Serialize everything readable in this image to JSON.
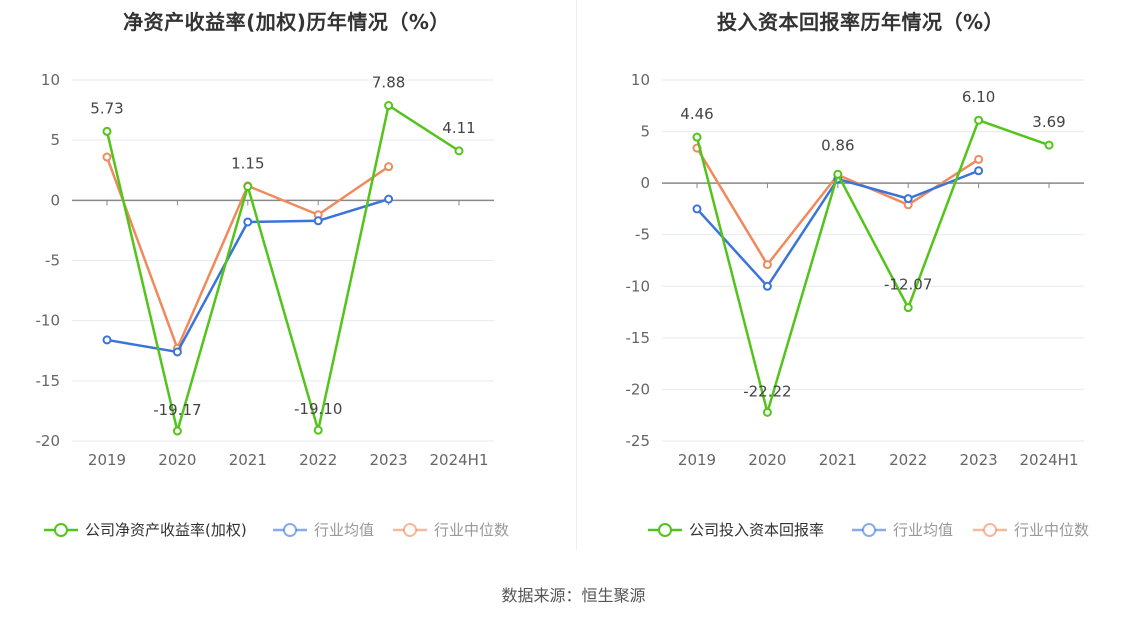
{
  "source_label": "数据来源：恒生聚源",
  "chart_data": [
    {
      "type": "line",
      "title": "净资产收益率(加权)历年情况（%）",
      "categories": [
        "2019",
        "2020",
        "2021",
        "2022",
        "2023",
        "2024H1"
      ],
      "ylim": [
        -20,
        10
      ],
      "yticks": [
        10,
        5,
        0,
        -5,
        -10,
        -15,
        -20
      ],
      "grid": true,
      "legend_position": "bottom",
      "series": [
        {
          "name": "公司净资产收益率(加权)",
          "color": "#52c41a",
          "values": [
            5.73,
            -19.17,
            1.15,
            -19.1,
            7.88,
            4.11
          ],
          "labels": [
            "5.73",
            "-19.17",
            "1.15",
            "-19.10",
            "7.88",
            "4.11"
          ]
        },
        {
          "name": "行业均值",
          "color": "#3b74d8",
          "values": [
            -11.6,
            -12.6,
            -1.8,
            -1.7,
            0.1,
            null
          ]
        },
        {
          "name": "行业中位数",
          "color": "#f08a5d",
          "values": [
            3.6,
            -12.3,
            1.2,
            -1.2,
            2.8,
            null
          ]
        }
      ]
    },
    {
      "type": "line",
      "title": "投入资本回报率历年情况（%）",
      "categories": [
        "2019",
        "2020",
        "2021",
        "2022",
        "2023",
        "2024H1"
      ],
      "ylim": [
        -25,
        10
      ],
      "yticks": [
        10,
        5,
        0,
        -5,
        -10,
        -15,
        -20,
        -25
      ],
      "grid": true,
      "legend_position": "bottom",
      "series": [
        {
          "name": "公司投入资本回报率",
          "color": "#52c41a",
          "values": [
            4.46,
            -22.22,
            0.86,
            -12.07,
            6.1,
            3.69
          ],
          "labels": [
            "4.46",
            "-22.22",
            "0.86",
            "-12.07",
            "6.10",
            "3.69"
          ]
        },
        {
          "name": "行业均值",
          "color": "#3b74d8",
          "values": [
            -2.5,
            -10.0,
            0.4,
            -1.5,
            1.2,
            null
          ]
        },
        {
          "name": "行业中位数",
          "color": "#f08a5d",
          "values": [
            3.4,
            -7.9,
            0.8,
            -2.1,
            2.3,
            null
          ]
        }
      ]
    }
  ]
}
